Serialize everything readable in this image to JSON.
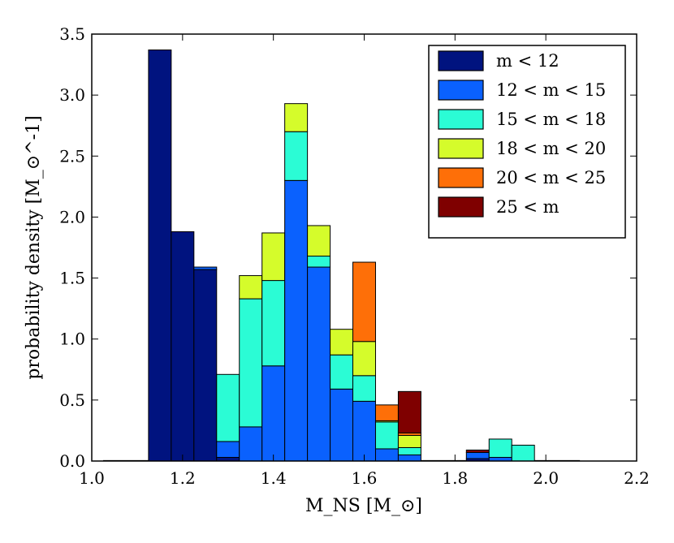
{
  "chart_data": {
    "type": "bar",
    "stacked": true,
    "title": "",
    "xlabel": "M_NS [M_⊙]",
    "ylabel": "probability density [M_⊙^-1]",
    "xlim": [
      1.0,
      2.2
    ],
    "ylim": [
      0.0,
      3.5
    ],
    "bin_width": 0.05,
    "bin_starts": [
      1.125,
      1.175,
      1.225,
      1.275,
      1.325,
      1.375,
      1.425,
      1.475,
      1.525,
      1.575,
      1.625,
      1.675,
      1.725,
      1.775,
      1.825,
      1.875,
      1.925,
      1.975
    ],
    "x_ticks": [
      "1.0",
      "1.2",
      "1.4",
      "1.6",
      "1.8",
      "2.0",
      "2.2"
    ],
    "x_tick_values": [
      1.0,
      1.2,
      1.4,
      1.6,
      1.8,
      2.0,
      2.2
    ],
    "y_ticks": [
      "0.0",
      "0.5",
      "1.0",
      "1.5",
      "2.0",
      "2.5",
      "3.0",
      "3.5"
    ],
    "y_tick_values": [
      0.0,
      0.5,
      1.0,
      1.5,
      2.0,
      2.5,
      3.0,
      3.5
    ],
    "legend_position": "top-right",
    "series": [
      {
        "name": "m < 12",
        "color": "#00137f",
        "values": [
          3.37,
          1.88,
          1.57,
          0.03,
          0.0,
          0.0,
          0.0,
          0.0,
          0.0,
          0.0,
          0.0,
          0.0,
          0.0,
          0.0,
          0.02,
          0.0,
          0.0,
          0.0
        ]
      },
      {
        "name": "12 < m < 15",
        "color": "#0a61fe",
        "values": [
          0.0,
          0.0,
          0.02,
          0.13,
          0.28,
          0.78,
          2.3,
          1.59,
          0.59,
          0.49,
          0.1,
          0.05,
          0.0,
          0.0,
          0.05,
          0.03,
          0.0,
          0.0
        ]
      },
      {
        "name": "15 < m < 18",
        "color": "#2bfcd5",
        "values": [
          0.0,
          0.0,
          0.0,
          0.55,
          1.05,
          0.7,
          0.4,
          0.09,
          0.28,
          0.21,
          0.22,
          0.06,
          0.0,
          0.0,
          0.0,
          0.15,
          0.13,
          0.0
        ]
      },
      {
        "name": "18 < m < 20",
        "color": "#d5fc2b",
        "values": [
          0.0,
          0.0,
          0.0,
          0.0,
          0.19,
          0.39,
          0.23,
          0.25,
          0.21,
          0.28,
          0.01,
          0.1,
          0.0,
          0.0,
          0.0,
          0.0,
          0.0,
          0.0
        ]
      },
      {
        "name": "20 < m < 25",
        "color": "#fe6f08",
        "values": [
          0.0,
          0.0,
          0.0,
          0.0,
          0.0,
          0.0,
          0.0,
          0.0,
          0.0,
          0.65,
          0.13,
          0.02,
          0.0,
          0.0,
          0.0,
          0.0,
          0.0,
          0.0
        ]
      },
      {
        "name": "25 < m",
        "color": "#7f0000",
        "values": [
          0.0,
          0.0,
          0.0,
          0.0,
          0.0,
          0.0,
          0.0,
          0.0,
          0.0,
          0.0,
          0.0,
          0.34,
          0.0,
          0.0,
          0.02,
          0.0,
          0.0,
          0.0
        ]
      }
    ]
  }
}
